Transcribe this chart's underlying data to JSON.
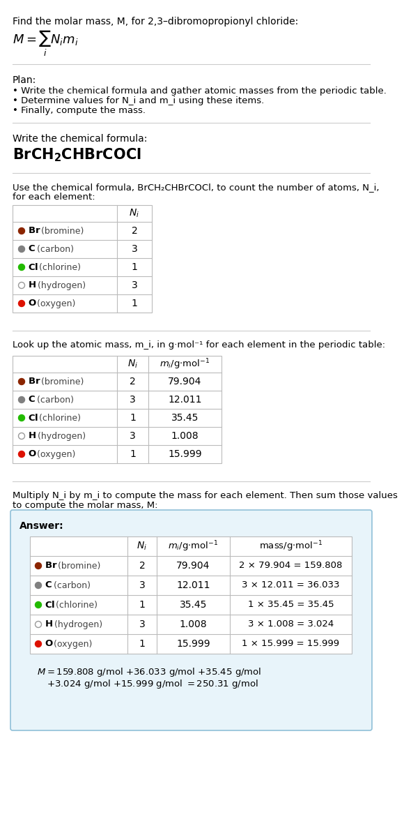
{
  "title_line": "Find the molar mass, M, for 2,3–dibromopropionyl chloride:",
  "plan_header": "Plan:",
  "plan_bullets": [
    "• Write the chemical formula and gather atomic masses from the periodic table.",
    "• Determine values for N_i and m_i using these items.",
    "• Finally, compute the mass."
  ],
  "formula_section_header": "Write the chemical formula:",
  "table1_intro": "Use the chemical formula, BrCH₂CHBrCOCl, to count the number of atoms, N_i,\nfor each element:",
  "table2_intro": "Look up the atomic mass, m_i, in g·mol⁻¹ for each element in the periodic table:",
  "multiply_header_line1": "Multiply N_i by m_i to compute the mass for each element. Then sum those values",
  "multiply_header_line2": "to compute the molar mass, M:",
  "elements": [
    "Br (bromine)",
    "C (carbon)",
    "Cl (chlorine)",
    "H (hydrogen)",
    "O (oxygen)"
  ],
  "element_symbols": [
    "Br",
    "C",
    "Cl",
    "H",
    "O"
  ],
  "element_colors": [
    "#8B2500",
    "#808080",
    "#22BB00",
    "#FFFFFF",
    "#DD1100"
  ],
  "element_border_color": [
    "none",
    "none",
    "none",
    "#999999",
    "none"
  ],
  "Ni": [
    2,
    3,
    1,
    3,
    1
  ],
  "mi": [
    "79.904",
    "12.011",
    "35.45",
    "1.008",
    "15.999"
  ],
  "mass_col": [
    "2 × 79.904 = 159.808",
    "3 × 12.011 = 36.033",
    "1 × 35.45 = 35.45",
    "3 × 1.008 = 3.024",
    "1 × 15.999 = 15.999"
  ],
  "answer_bg": "#E8F4FA",
  "answer_border": "#90C0D8",
  "final_line1": "M = 159.808 g/mol + 36.033 g/mol + 35.45 g/mol",
  "final_line2": "    + 3.024 g/mol + 15.999 g/mol = 250.31 g/mol",
  "bg_color": "#FFFFFF"
}
